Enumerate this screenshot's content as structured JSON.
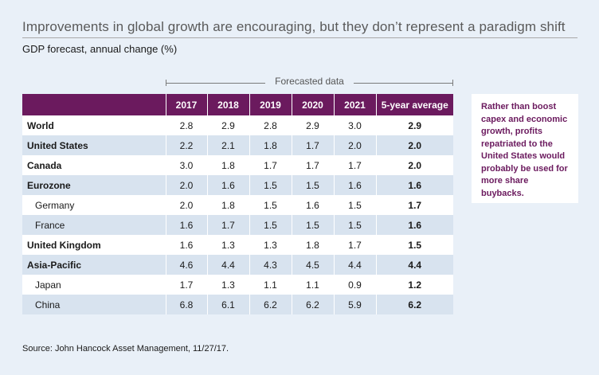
{
  "title": "Improvements in global growth are encouraging, but they don’t represent a paradigm shift",
  "subtitle": "GDP forecast, annual change (%)",
  "forecast_label": "Forecasted data",
  "callout": "Rather than boost capex and economic growth, profits repatriated to the United States would probably be used for more share buybacks.",
  "source": "Source: John Hancock Asset Management, 11/27/17.",
  "colors": {
    "header": "#6b1a5e",
    "band": "#d8e3ef",
    "background": "#e9f0f8"
  },
  "chart_data": {
    "type": "table",
    "columns": [
      "",
      "2017",
      "2018",
      "2019",
      "2020",
      "2021",
      "5-year average"
    ],
    "rows": [
      {
        "country": "World",
        "values": [
          "2.8",
          "2.9",
          "2.8",
          "2.9",
          "3.0"
        ],
        "average": "2.9",
        "indent": false
      },
      {
        "country": "United States",
        "values": [
          "2.2",
          "2.1",
          "1.8",
          "1.7",
          "2.0"
        ],
        "average": "2.0",
        "indent": false
      },
      {
        "country": "Canada",
        "values": [
          "3.0",
          "1.8",
          "1.7",
          "1.7",
          "1.7"
        ],
        "average": "2.0",
        "indent": false
      },
      {
        "country": "Eurozone",
        "values": [
          "2.0",
          "1.6",
          "1.5",
          "1.5",
          "1.6"
        ],
        "average": "1.6",
        "indent": false
      },
      {
        "country": "Germany",
        "values": [
          "2.0",
          "1.8",
          "1.5",
          "1.6",
          "1.5"
        ],
        "average": "1.7",
        "indent": true
      },
      {
        "country": "France",
        "values": [
          "1.6",
          "1.7",
          "1.5",
          "1.5",
          "1.5"
        ],
        "average": "1.6",
        "indent": true
      },
      {
        "country": "United Kingdom",
        "values": [
          "1.6",
          "1.3",
          "1.3",
          "1.8",
          "1.7"
        ],
        "average": "1.5",
        "indent": false
      },
      {
        "country": "Asia-Pacific",
        "values": [
          "4.6",
          "4.4",
          "4.3",
          "4.5",
          "4.4"
        ],
        "average": "4.4",
        "indent": false
      },
      {
        "country": "Japan",
        "values": [
          "1.7",
          "1.3",
          "1.1",
          "1.1",
          "0.9"
        ],
        "average": "1.2",
        "indent": true
      },
      {
        "country": "China",
        "values": [
          "6.8",
          "6.1",
          "6.2",
          "6.2",
          "5.9"
        ],
        "average": "6.2",
        "indent": true
      }
    ]
  }
}
